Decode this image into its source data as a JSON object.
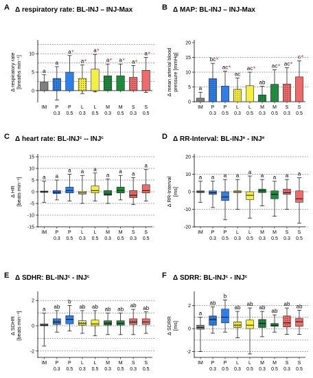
{
  "categories": [
    {
      "line1": "IM",
      "line2": ""
    },
    {
      "line1": "P",
      "line2": "0.3"
    },
    {
      "line1": "P",
      "line2": "0.5"
    },
    {
      "line1": "L",
      "line2": "0.3"
    },
    {
      "line1": "L",
      "line2": "0.5"
    },
    {
      "line1": "M",
      "line2": "0.3"
    },
    {
      "line1": "M",
      "line2": "0.5"
    },
    {
      "line1": "S",
      "line2": "0.3"
    },
    {
      "line1": "S",
      "line2": "0.5"
    }
  ],
  "colors": {
    "IM": "#7f7f7f",
    "P": "#2f7fe8",
    "L": "#f5f03c",
    "M": "#1e8a3c",
    "S": "#f06a6a",
    "star": "#e8262a"
  },
  "chart_data": [
    {
      "panel": "A",
      "type": "bar",
      "title": "Δ respiratory rate: BL-INJ – INJ-Max",
      "ylabel_line1": "Δ respiratory rate",
      "ylabel_line2": "[breaths min⁻¹]",
      "ylim": [
        -3,
        13
      ],
      "yticks": [
        0,
        5,
        10
      ],
      "values": [
        2.3,
        3.3,
        5.0,
        3.3,
        5.8,
        4.0,
        4.0,
        3.6,
        5.5
      ],
      "err_low": [
        0.8,
        -2.5,
        0.5,
        -0.8,
        -0.3,
        0.3,
        1.0,
        0.8,
        -0.5
      ],
      "err_high": [
        4.3,
        6.5,
        9.5,
        7.0,
        9.8,
        7.2,
        7.2,
        6.8,
        9.0
      ],
      "letters": [
        "a",
        "a",
        "a",
        "a",
        "a",
        "a",
        "a",
        "a",
        "a"
      ],
      "stars": [
        false,
        false,
        true,
        true,
        true,
        true,
        true,
        true,
        true
      ],
      "gridlines": [
        2.5,
        5,
        7.5,
        10,
        12.5
      ]
    },
    {
      "panel": "B",
      "type": "bar",
      "title": "Δ MAP: BL-INJ – INJ-Max",
      "ylabel_line1": "Δ mean arterial blood",
      "ylabel_line2": "pressure [mmHg]",
      "ylim": [
        0,
        20
      ],
      "yticks": [
        0,
        5,
        10,
        15,
        20
      ],
      "values": [
        1.2,
        7.8,
        5.3,
        4.2,
        5.4,
        2.3,
        5.9,
        6.0,
        8.4
      ],
      "err_low": [
        0,
        2.8,
        0.2,
        0.2,
        0.2,
        0,
        0.8,
        1.0,
        3.0
      ],
      "err_high": [
        3.2,
        13.0,
        10.3,
        8.0,
        10.0,
        5.2,
        10.8,
        11.5,
        13.8
      ],
      "letters": [
        "a",
        "bc",
        "ac",
        "ac",
        "ac",
        "ab",
        "ac",
        "ac",
        "c"
      ],
      "stars": [
        false,
        true,
        true,
        false,
        true,
        false,
        true,
        true,
        true
      ],
      "gridlines": [
        5,
        10,
        15
      ]
    },
    {
      "panel": "C",
      "type": "boxplot",
      "title": "Δ heart rate: BL-INJ^c -- INJ^c",
      "ylabel_line1": "Δ HR",
      "ylabel_line2": "[beats min⁻¹]",
      "ylim": [
        -15,
        15
      ],
      "yticks": [
        -15,
        -10,
        -5,
        0,
        5,
        10,
        15
      ],
      "boxes": [
        {
          "min": -4.5,
          "q1": -0.3,
          "median": 0,
          "q3": 0.3,
          "max": 4.5
        },
        {
          "min": -3.5,
          "q1": -0.8,
          "median": -0.2,
          "q3": 0.5,
          "max": 5.0
        },
        {
          "min": -4.0,
          "q1": -0.5,
          "median": 0.5,
          "q3": 2.0,
          "max": 7.5
        },
        {
          "min": -5.0,
          "q1": -1.0,
          "median": -0.5,
          "q3": 0.2,
          "max": 7.0
        },
        {
          "min": -4.0,
          "q1": -0.5,
          "median": 0.5,
          "q3": 2.5,
          "max": 8.0
        },
        {
          "min": -5.0,
          "q1": -1.5,
          "median": -1.0,
          "q3": 0.5,
          "max": 5.5
        },
        {
          "min": -3.5,
          "q1": -0.5,
          "median": 0.5,
          "q3": 2.0,
          "max": 7.0
        },
        {
          "min": -5.5,
          "q1": -2.5,
          "median": -1.5,
          "q3": 0.5,
          "max": 6.0
        },
        {
          "min": -4.0,
          "q1": -0.5,
          "median": 0.5,
          "q3": 3.0,
          "max": 9.5
        }
      ],
      "letters": [
        "a",
        "a",
        "a",
        "a",
        "a",
        "a",
        "a",
        "a",
        "a"
      ],
      "gridlines": [
        -15,
        -10,
        -5,
        0,
        5,
        10,
        15
      ]
    },
    {
      "panel": "D",
      "type": "boxplot",
      "title": "Δ RR-Interval: BL-INJ^e - INJ^e",
      "ylabel_line1": "Δ RR-Interval",
      "ylabel_line2": "[ms]",
      "ylim": [
        -20,
        20
      ],
      "yticks": [
        -20,
        -10,
        0,
        10,
        20
      ],
      "boxes": [
        {
          "min": -6,
          "q1": -0.5,
          "median": 0,
          "q3": 0.5,
          "max": 6
        },
        {
          "min": -9,
          "q1": -1.5,
          "median": -0.5,
          "q3": 0.5,
          "max": 6
        },
        {
          "min": -16,
          "q1": -5,
          "median": -3,
          "q3": 0,
          "max": 7
        },
        {
          "min": -10,
          "q1": -0.5,
          "median": 0,
          "q3": 0.5,
          "max": 7
        },
        {
          "min": -15,
          "q1": -4.5,
          "median": -2,
          "q3": 0,
          "max": 9
        },
        {
          "min": -8,
          "q1": -0.5,
          "median": 0.5,
          "q3": 1.5,
          "max": 7
        },
        {
          "min": -14,
          "q1": -4,
          "median": -1.5,
          "q3": 0.5,
          "max": 6
        },
        {
          "min": -10,
          "q1": -1.5,
          "median": -0.5,
          "q3": 1.5,
          "max": 7
        },
        {
          "min": -18,
          "q1": -6,
          "median": -4,
          "q3": 0.5,
          "max": 8
        }
      ],
      "letters": [
        "a",
        "a",
        "a",
        "a",
        "a",
        "a",
        "a",
        "a",
        "a"
      ],
      "gridlines": [
        -20,
        -10,
        0,
        10,
        20
      ]
    },
    {
      "panel": "E",
      "type": "boxplot",
      "title": "Δ SDHR: BL-INJ^c - INJ^c",
      "ylabel_line1": "Δ SDHR",
      "ylabel_line2": "[beats min⁻¹]",
      "ylim": [
        -2.5,
        2.5
      ],
      "yticks": [
        -2,
        0,
        2
      ],
      "boxes": [
        {
          "min": -1.6,
          "q1": 0,
          "median": 0.05,
          "q3": 0.15,
          "max": 1.0
        },
        {
          "min": -0.5,
          "q1": 0.1,
          "median": 0.3,
          "q3": 0.55,
          "max": 1.2
        },
        {
          "min": -0.4,
          "q1": 0.15,
          "median": 0.5,
          "q3": 0.8,
          "max": 1.6
        },
        {
          "min": -0.6,
          "q1": 0.05,
          "median": 0.2,
          "q3": 0.4,
          "max": 1.2
        },
        {
          "min": -0.8,
          "q1": 0.0,
          "median": 0.15,
          "q3": 0.45,
          "max": 1.2
        },
        {
          "min": -0.7,
          "q1": 0.05,
          "median": 0.2,
          "q3": 0.4,
          "max": 1.0
        },
        {
          "min": -0.7,
          "q1": 0.05,
          "median": 0.2,
          "q3": 0.4,
          "max": 1.0
        },
        {
          "min": -0.7,
          "q1": 0.1,
          "median": 0.3,
          "q3": 0.55,
          "max": 1.3
        },
        {
          "min": -0.6,
          "q1": 0.1,
          "median": 0.3,
          "q3": 0.55,
          "max": 1.1
        }
      ],
      "letters": [
        "a",
        "ab",
        "b",
        "ab",
        "ab",
        "ab",
        "ab",
        "ab",
        "ab"
      ],
      "gridlines": [
        -2,
        -1,
        0,
        1,
        2
      ]
    },
    {
      "panel": "F",
      "type": "boxplot",
      "title": "Δ SDRR: BL-INJ^c - INJ^c",
      "ylabel_line1": "Δ SDRR",
      "ylabel_line2": "[ms]",
      "ylim": [
        -2.5,
        3
      ],
      "yticks": [
        -2,
        0,
        2
      ],
      "boxes": [
        {
          "min": -2.0,
          "q1": -0.05,
          "median": 0.1,
          "q3": 0.3,
          "max": 1.0
        },
        {
          "min": -0.4,
          "q1": 0.3,
          "median": 0.8,
          "q3": 1.1,
          "max": 1.9
        },
        {
          "min": -0.3,
          "q1": 0.5,
          "median": 1.0,
          "q3": 1.7,
          "max": 2.5
        },
        {
          "min": -0.8,
          "q1": 0.1,
          "median": 0.3,
          "q3": 0.6,
          "max": 1.5
        },
        {
          "min": -2.2,
          "q1": 0.0,
          "median": 0.3,
          "q3": 0.75,
          "max": 1.8
        },
        {
          "min": -0.7,
          "q1": 0.1,
          "median": 0.45,
          "q3": 0.8,
          "max": 1.5
        },
        {
          "min": -0.3,
          "q1": 0.2,
          "median": 0.3,
          "q3": 0.45,
          "max": 1.2
        },
        {
          "min": -0.5,
          "q1": 0.15,
          "median": 0.5,
          "q3": 1.1,
          "max": 1.8
        },
        {
          "min": -0.5,
          "q1": 0.2,
          "median": 0.6,
          "q3": 0.9,
          "max": 1.6
        }
      ],
      "letters": [
        "a",
        "ab",
        "b",
        "ab",
        "ab",
        "ab",
        "ab",
        "ab",
        "ab"
      ],
      "gridlines": [
        -2,
        -1,
        0,
        1,
        2
      ]
    }
  ]
}
